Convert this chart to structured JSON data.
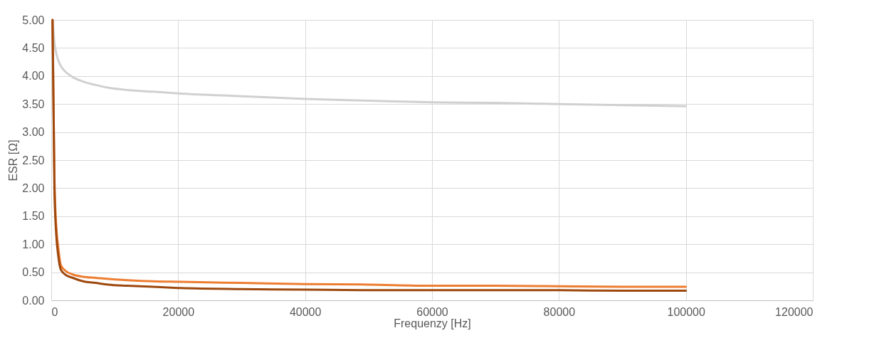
{
  "chart_data": {
    "type": "line",
    "xlabel": "Frequenzy [Hz]",
    "ylabel": "ESR [Ω]",
    "xlim": [
      0,
      120000
    ],
    "xticks": [
      0,
      20000,
      40000,
      60000,
      80000,
      100000,
      120000
    ],
    "ylim": [
      0,
      5
    ],
    "yticks": [
      {
        "value": 0,
        "label": "0.00"
      },
      {
        "value": 0.5,
        "label": "0.50"
      },
      {
        "value": 1,
        "label": "1.00"
      },
      {
        "value": 1.5,
        "label": "1.50"
      },
      {
        "value": 2,
        "label": "2.00"
      },
      {
        "value": 2.5,
        "label": "2.50"
      },
      {
        "value": 3,
        "label": "3.00"
      },
      {
        "value": 3.5,
        "label": "3.50"
      },
      {
        "value": 4,
        "label": "4.00"
      },
      {
        "value": 4.5,
        "label": "4.50"
      },
      {
        "value": 5,
        "label": "5.00"
      }
    ],
    "grid": true,
    "legend": false,
    "marker": "none",
    "line_style": "solid",
    "x": [
      200,
      500,
      800,
      1100,
      1500,
      2200,
      3400,
      5000,
      7000,
      9000,
      12000,
      16000,
      20000,
      30000,
      40000,
      50000,
      60000,
      70000,
      80000,
      90000,
      100000
    ],
    "series": [
      {
        "color": "#d0d0d0",
        "values": [
          5.0,
          4.6,
          4.4,
          4.28,
          4.18,
          4.08,
          3.98,
          3.9,
          3.84,
          3.79,
          3.75,
          3.72,
          3.69,
          3.64,
          3.59,
          3.56,
          3.53,
          3.52,
          3.5,
          3.48,
          3.46
        ]
      },
      {
        "color": "#ed7d31",
        "values": [
          5.0,
          2.2,
          1.3,
          0.95,
          0.63,
          0.53,
          0.46,
          0.42,
          0.4,
          0.38,
          0.36,
          0.34,
          0.33,
          0.31,
          0.29,
          0.28,
          0.26,
          0.26,
          0.25,
          0.24,
          0.24
        ]
      },
      {
        "color": "#9e480e",
        "values": [
          5.0,
          2.0,
          1.15,
          0.8,
          0.55,
          0.46,
          0.4,
          0.34,
          0.31,
          0.28,
          0.26,
          0.24,
          0.22,
          0.2,
          0.19,
          0.18,
          0.18,
          0.18,
          0.18,
          0.17,
          0.17
        ]
      }
    ]
  }
}
